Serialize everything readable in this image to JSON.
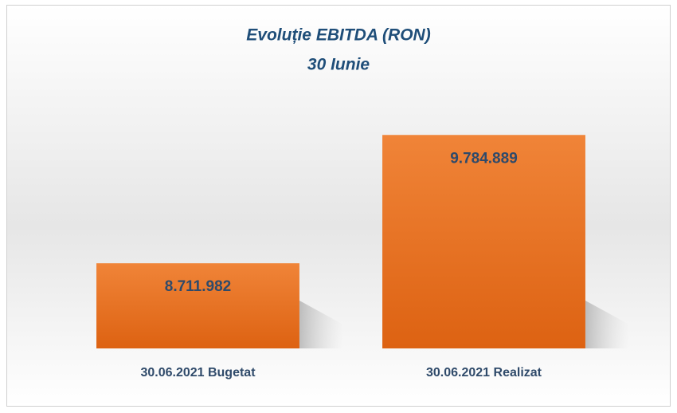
{
  "chart_data": {
    "type": "bar",
    "title": "Evoluție EBITDA (RON)",
    "subtitle": "30 Iunie",
    "categories": [
      "30.06.2021 Bugetat",
      "30.06.2021 Realizat"
    ],
    "values": [
      8711982,
      9784889
    ],
    "value_labels": [
      "8.711.982",
      "9.784.889"
    ],
    "color": "#e8712a",
    "ylim": [
      8000000,
      10000000
    ]
  }
}
